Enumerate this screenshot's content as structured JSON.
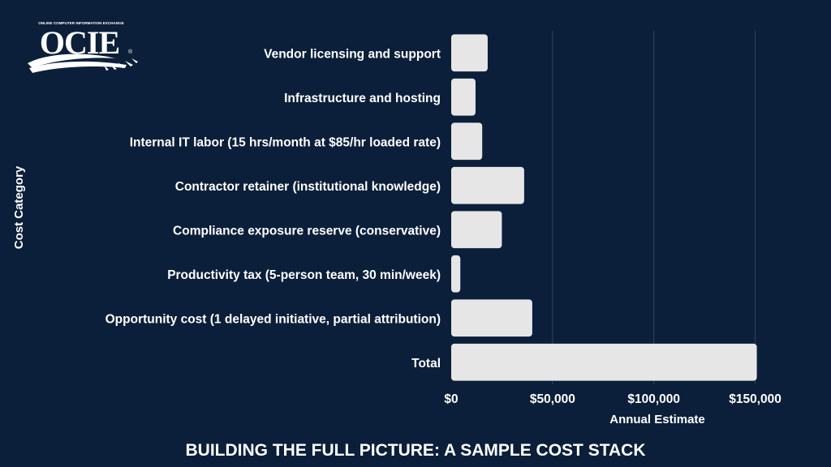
{
  "logo": {
    "tagline": "ONLINE COMPUTER INFORMATION EXCHANGE",
    "wordmark": "OCIE",
    "registered": "®"
  },
  "footer": {
    "title": "BUILDING THE FULL PICTURE: A SAMPLE COST STACK"
  },
  "colors": {
    "background": "#0b1f3a",
    "bar": "#e6e6e6",
    "grid": "#2b4466",
    "text": "#ffffff"
  },
  "chart_data": {
    "type": "bar",
    "orientation": "horizontal",
    "title": "",
    "xlabel": "Annual Estimate",
    "ylabel": "Cost Category",
    "xlim": [
      0,
      185000
    ],
    "xticks": [
      0,
      50000,
      100000,
      150000
    ],
    "xtick_labels": [
      "$0",
      "$50,000",
      "$100,000",
      "$150,000"
    ],
    "grid": "vertical",
    "categories": [
      "Vendor licensing and support",
      "Infrastructure and hosting",
      "Internal IT labor (15 hrs/month at $85/hr loaded rate)",
      "Contractor retainer (institutional knowledge)",
      "Compliance exposure reserve (conservative)",
      "Productivity tax (5-person team, 30 min/week)",
      "Opportunity cost (1 delayed initiative, partial attribution)",
      "Total"
    ],
    "values": [
      18000,
      12000,
      15300,
      36000,
      25000,
      4500,
      40000,
      150800
    ]
  }
}
